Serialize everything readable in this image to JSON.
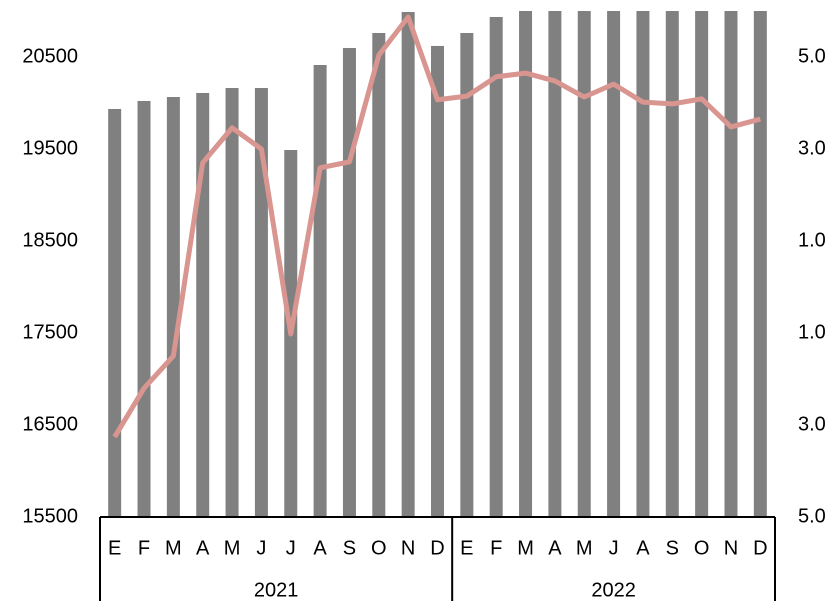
{
  "chart_data": {
    "type": "bar-line",
    "category_groups": [
      {
        "name": "2021",
        "categories": [
          "E",
          "F",
          "M",
          "A",
          "M",
          "J",
          "J",
          "A",
          "S",
          "O",
          "N",
          "D"
        ]
      },
      {
        "name": "2022",
        "categories": [
          "E",
          "F",
          "M",
          "A",
          "M",
          "J",
          "A",
          "S",
          "O",
          "N",
          "D"
        ]
      }
    ],
    "series": [
      {
        "type": "bar",
        "color": "#808080",
        "values": [
          19935,
          20022,
          20065,
          20109,
          20163,
          20163,
          19489,
          20413,
          20598,
          20761,
          20989,
          20620,
          20761,
          20935,
          21000,
          21000,
          21000,
          21000,
          21000,
          21000,
          21000,
          21000,
          21000
        ]
      },
      {
        "type": "line",
        "axis": "y2",
        "color": "#d99590",
        "values": [
          -3.26,
          -2.2,
          -1.5,
          2.7,
          3.46,
          3.0,
          -1.02,
          2.59,
          2.72,
          5.04,
          5.87,
          4.07,
          4.15,
          4.57,
          4.65,
          4.48,
          4.13,
          4.41,
          4.02,
          3.98,
          4.09,
          3.48,
          3.65
        ]
      }
    ],
    "ylim": [
      15500,
      21000
    ],
    "yticks": [
      15500,
      16500,
      17500,
      18500,
      19500,
      20500
    ],
    "y2lim": [
      -5,
      6
    ],
    "y2ticks": [
      {
        "value": -5,
        "label": "5.0"
      },
      {
        "value": -3,
        "label": "3.0"
      },
      {
        "value": -1,
        "label": "1.0"
      },
      {
        "value": 1,
        "label": "1.0"
      },
      {
        "value": 3,
        "label": "3.0"
      },
      {
        "value": 5,
        "label": "5.0"
      }
    ],
    "negative_tick_color": "#ff0000",
    "grid": false
  }
}
